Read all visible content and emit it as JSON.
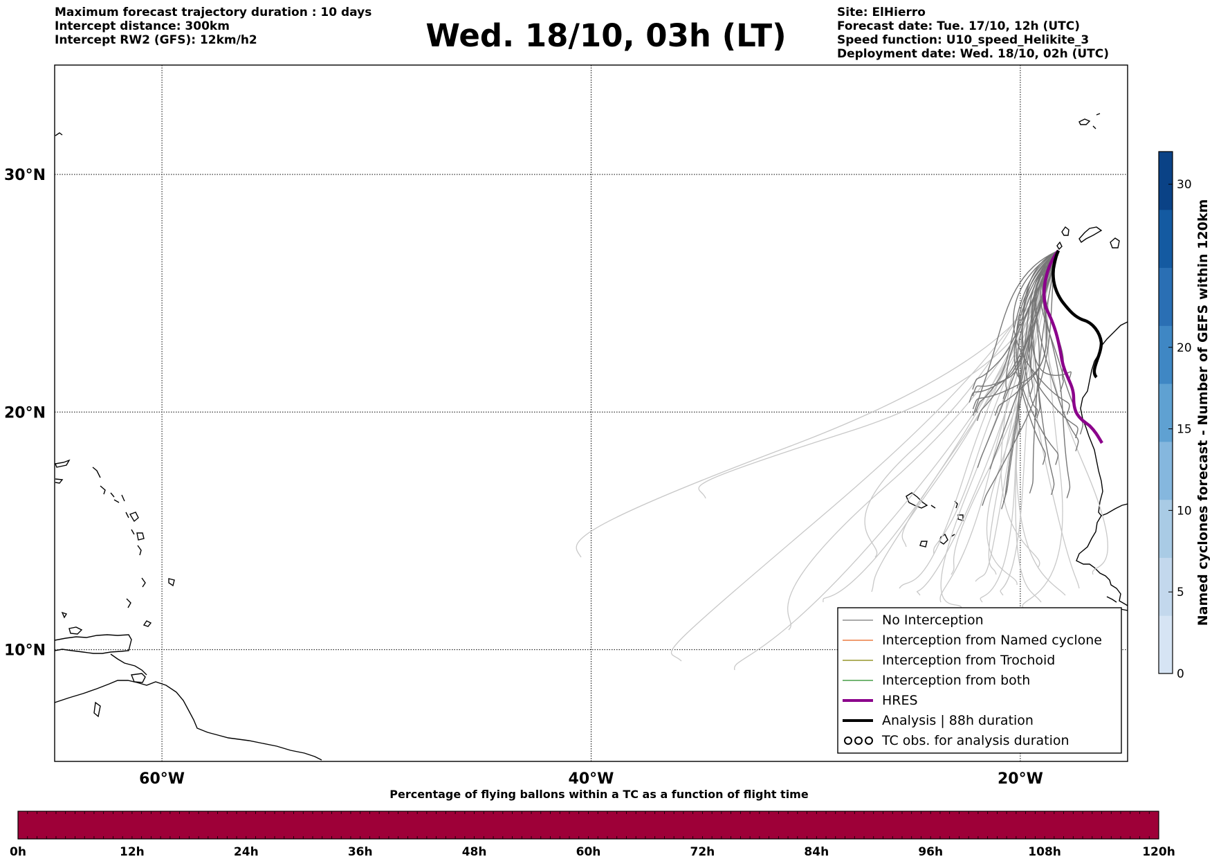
{
  "header": {
    "left": [
      "Maximum forecast trajectory duration : 10 days",
      "Intercept distance: 300km",
      "Intercept RW2 (GFS):  12km/h2"
    ],
    "title": "Wed. 18/10, 03h (LT)",
    "right": [
      "Site: ElHierro",
      "Forecast date: Tue. 17/10, 12h (UTC)",
      "Speed function: U10_speed_Helikite_3",
      "Deployment date: Wed. 18/10, 02h (UTC)"
    ]
  },
  "map": {
    "lat_labels": [
      "30°N",
      "20°N",
      "10°N"
    ],
    "lon_labels": [
      "60°W",
      "40°W",
      "20°W"
    ],
    "lat_values": [
      30,
      20,
      10
    ],
    "lon_values": [
      -60,
      -40,
      -20
    ],
    "extent": {
      "lon_min": -65,
      "lon_max": -15,
      "lat_min": 5.3,
      "lat_max": 34.6
    },
    "site_label": "ElHierro",
    "colors": {
      "no_interception": "#777777",
      "named_cyclone": "#e8601c",
      "trochoid": "#808000",
      "both": "#228b22",
      "hres": "#8b008b",
      "analysis": "#000000",
      "faded_trajectory": "#c8c8c8"
    }
  },
  "legend": {
    "items": [
      {
        "label": "No Interception",
        "style": "no_interception",
        "width": 1.2
      },
      {
        "label": "Interception from Named cyclone",
        "style": "named_cyclone",
        "width": 1.2
      },
      {
        "label": "Interception from Trochoid",
        "style": "trochoid",
        "width": 1.2
      },
      {
        "label": "Interception from both",
        "style": "both",
        "width": 1.2
      },
      {
        "label": "HRES",
        "style": "hres",
        "width": 4
      },
      {
        "label": "Analysis | 88h duration",
        "style": "analysis",
        "width": 4
      },
      {
        "label": "TC obs. for analysis duration",
        "style": "tc_obs",
        "width": 0
      }
    ]
  },
  "right_colorbar": {
    "label": "Named cyclones forecast - Number of GEFS within 120km",
    "ticks": [
      0,
      5,
      10,
      15,
      20,
      30
    ],
    "min": 0,
    "max": 32,
    "colors": [
      "#d6e4f4",
      "#c3d8ed",
      "#a9cbe5",
      "#85b7de",
      "#5fa1d2",
      "#3f87c4",
      "#2a6fb4",
      "#145aa1",
      "#0a4286"
    ]
  },
  "bottom_colorbar": {
    "title": "Percentage of flying ballons within a TC as a function of flight time",
    "ticks": [
      "0h",
      "12h",
      "24h",
      "36h",
      "48h",
      "60h",
      "72h",
      "84h",
      "96h",
      "108h",
      "120h"
    ],
    "fill_color": "#9e0038"
  }
}
